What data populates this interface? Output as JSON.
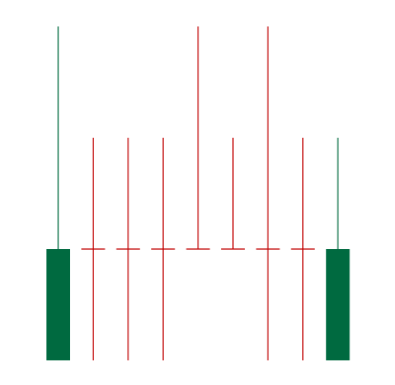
{
  "chart_data": {
    "type": "candlestick",
    "title": "",
    "xlabel": "",
    "ylabel": "",
    "axes_visible": false,
    "grid": false,
    "legend": "none",
    "ylim": [
      0,
      3
    ],
    "colors": {
      "up": "#006a40",
      "down": "#c00000"
    },
    "candles": [
      {
        "open": 1,
        "high": 3,
        "low": 0,
        "close": 0,
        "direction": "up"
      },
      {
        "open": 1,
        "high": 2,
        "low": 0,
        "close": 1,
        "direction": "down"
      },
      {
        "open": 1,
        "high": 2,
        "low": 0,
        "close": 1,
        "direction": "down"
      },
      {
        "open": 1,
        "high": 2,
        "low": 0,
        "close": 1,
        "direction": "down"
      },
      {
        "open": 1,
        "high": 3,
        "low": 1,
        "close": 1,
        "direction": "down"
      },
      {
        "open": 1,
        "high": 2,
        "low": 1,
        "close": 1,
        "direction": "down"
      },
      {
        "open": 1,
        "high": 3,
        "low": 0,
        "close": 1,
        "direction": "down"
      },
      {
        "open": 1,
        "high": 2,
        "low": 0,
        "close": 1,
        "direction": "down"
      },
      {
        "open": 1,
        "high": 2,
        "low": 0,
        "close": 0,
        "direction": "up"
      }
    ]
  }
}
